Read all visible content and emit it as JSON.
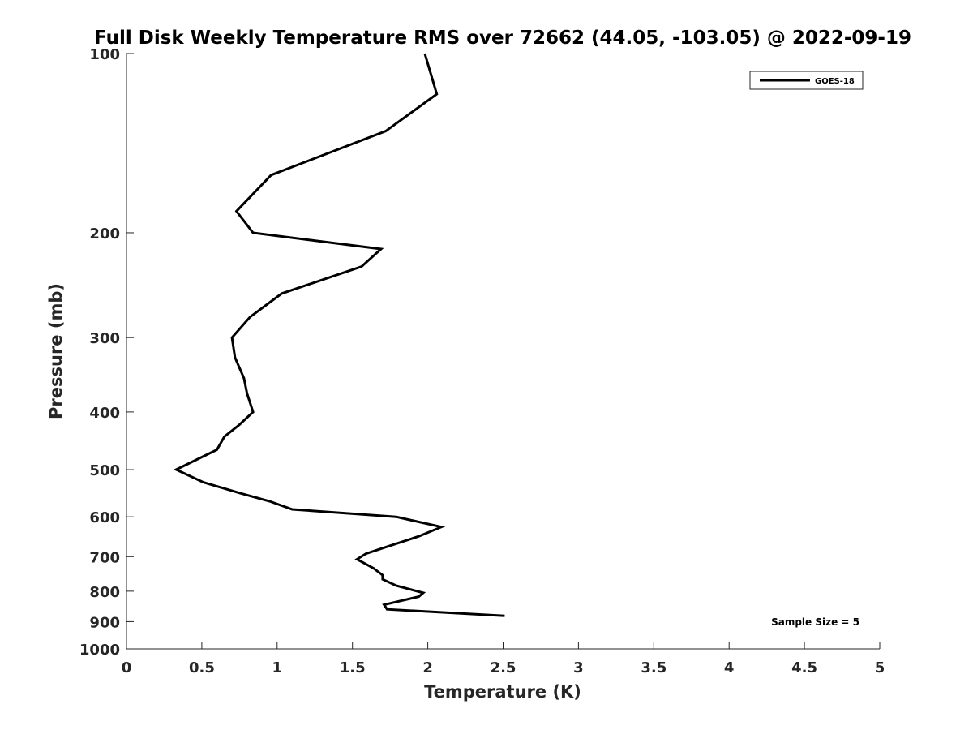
{
  "chart_data": {
    "type": "line",
    "title": "Full Disk Weekly Temperature RMS over 72662 (44.05, -103.05) @ 2022-09-19",
    "xlabel": "Temperature (K)",
    "ylabel": "Pressure (mb)",
    "xlim": [
      0,
      5
    ],
    "ylim": [
      1000,
      100
    ],
    "y_scale": "log",
    "y_reversed": true,
    "x_ticks": [
      0,
      0.5,
      1,
      1.5,
      2,
      2.5,
      3,
      3.5,
      4,
      4.5,
      5
    ],
    "x_tick_labels": [
      "0",
      "0.5",
      "1",
      "1.5",
      "2",
      "2.5",
      "3",
      "3.5",
      "4",
      "4.5",
      "5"
    ],
    "y_ticks": [
      100,
      200,
      300,
      400,
      500,
      600,
      700,
      800,
      900,
      1000
    ],
    "y_tick_labels": [
      "100",
      "200",
      "300",
      "400",
      "500",
      "600",
      "700",
      "800",
      "900",
      "1000"
    ],
    "grid": false,
    "legend_position": "top-right",
    "line_color": "#000000",
    "series": [
      {
        "name": "GOES-18",
        "points": [
          {
            "x": 1.98,
            "y": 100
          },
          {
            "x": 2.06,
            "y": 117
          },
          {
            "x": 1.72,
            "y": 135
          },
          {
            "x": 0.96,
            "y": 160
          },
          {
            "x": 0.73,
            "y": 184
          },
          {
            "x": 0.84,
            "y": 200
          },
          {
            "x": 1.69,
            "y": 213
          },
          {
            "x": 1.56,
            "y": 228
          },
          {
            "x": 1.03,
            "y": 253
          },
          {
            "x": 0.82,
            "y": 277
          },
          {
            "x": 0.7,
            "y": 300
          },
          {
            "x": 0.72,
            "y": 324
          },
          {
            "x": 0.78,
            "y": 351
          },
          {
            "x": 0.8,
            "y": 372
          },
          {
            "x": 0.84,
            "y": 400
          },
          {
            "x": 0.75,
            "y": 420
          },
          {
            "x": 0.65,
            "y": 440
          },
          {
            "x": 0.6,
            "y": 463
          },
          {
            "x": 0.33,
            "y": 500
          },
          {
            "x": 0.51,
            "y": 525
          },
          {
            "x": 0.76,
            "y": 548
          },
          {
            "x": 0.95,
            "y": 565
          },
          {
            "x": 1.1,
            "y": 583
          },
          {
            "x": 1.79,
            "y": 600
          },
          {
            "x": 2.09,
            "y": 624
          },
          {
            "x": 1.94,
            "y": 647
          },
          {
            "x": 1.75,
            "y": 671
          },
          {
            "x": 1.59,
            "y": 692
          },
          {
            "x": 1.53,
            "y": 707
          },
          {
            "x": 1.64,
            "y": 732
          },
          {
            "x": 1.7,
            "y": 752
          },
          {
            "x": 1.7,
            "y": 764
          },
          {
            "x": 1.79,
            "y": 783
          },
          {
            "x": 1.97,
            "y": 805
          },
          {
            "x": 1.94,
            "y": 817
          },
          {
            "x": 1.71,
            "y": 843
          },
          {
            "x": 1.73,
            "y": 858
          },
          {
            "x": 2.51,
            "y": 880
          }
        ]
      }
    ],
    "annotation": "Sample Size = 5"
  }
}
